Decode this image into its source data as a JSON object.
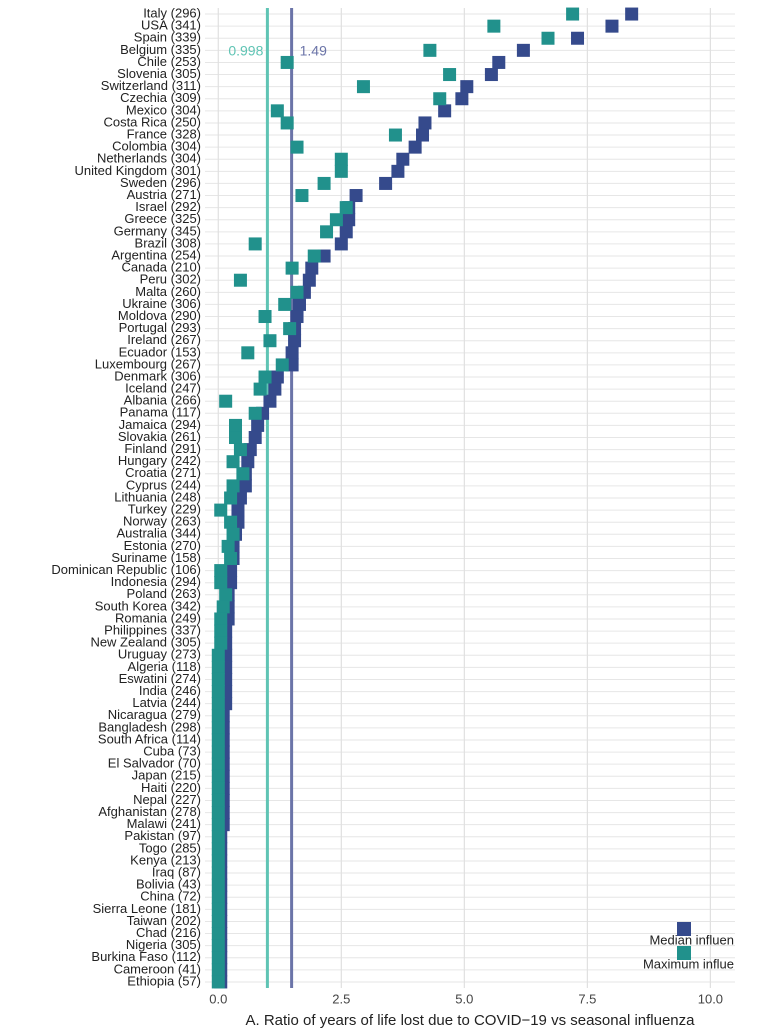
{
  "chart_data": {
    "type": "dot",
    "x_label": "A. Ratio of years of life lost due to COVID−19 vs seasonal influenza",
    "categories": [
      "Italy (296)",
      "USA (341)",
      "Spain (339)",
      "Belgium (335)",
      "Chile (253)",
      "Slovenia (305)",
      "Switzerland (311)",
      "Czechia (309)",
      "Mexico (304)",
      "Costa Rica (250)",
      "France (328)",
      "Colombia (304)",
      "Netherlands (304)",
      "United Kingdom (301)",
      "Sweden (296)",
      "Austria (271)",
      "Israel (292)",
      "Greece (325)",
      "Germany (345)",
      "Brazil (308)",
      "Argentina (254)",
      "Canada (210)",
      "Peru (302)",
      "Malta (260)",
      "Ukraine (306)",
      "Moldova (290)",
      "Portugal (293)",
      "Ireland (267)",
      "Ecuador (153)",
      "Luxembourg (267)",
      "Denmark (306)",
      "Iceland (247)",
      "Albania (266)",
      "Panama (117)",
      "Jamaica (294)",
      "Slovakia (261)",
      "Finland (291)",
      "Hungary (242)",
      "Croatia (271)",
      "Cyprus (244)",
      "Lithuania (248)",
      "Turkey (229)",
      "Norway (263)",
      "Australia (344)",
      "Estonia (270)",
      "Suriname (158)",
      "Dominican Republic (106)",
      "Indonesia (294)",
      "Poland (263)",
      "South Korea (342)",
      "Romania (249)",
      "Philippines (337)",
      "New Zealand (305)",
      "Uruguay (273)",
      "Algeria (118)",
      "Eswatini (274)",
      "India (246)",
      "Latvia (244)",
      "Nicaragua (279)",
      "Bangladesh (298)",
      "South Africa (114)",
      "Cuba (73)",
      "El Salvador (70)",
      "Japan (215)",
      "Haiti (220)",
      "Nepal (227)",
      "Afghanistan (278)",
      "Malawi (241)",
      "Pakistan (97)",
      "Togo (285)",
      "Kenya (213)",
      "Iraq (87)",
      "Bolivia (43)",
      "China (72)",
      "Sierra Leone (181)",
      "Taiwan (202)",
      "Chad (216)",
      "Nigeria (305)",
      "Burkina Faso (112)",
      "Cameroon (41)",
      "Ethiopia (57)"
    ],
    "series": [
      {
        "name": "Median influen",
        "color": "#354a8c",
        "values": [
          8.4,
          8.0,
          7.3,
          6.2,
          5.7,
          5.55,
          5.05,
          4.95,
          4.6,
          4.2,
          4.15,
          4.0,
          3.75,
          3.65,
          3.4,
          2.8,
          2.65,
          2.65,
          2.6,
          2.5,
          2.15,
          1.9,
          1.85,
          1.75,
          1.65,
          1.6,
          1.55,
          1.55,
          1.5,
          1.5,
          1.2,
          1.15,
          1.05,
          0.9,
          0.8,
          0.75,
          0.65,
          0.6,
          0.55,
          0.55,
          0.45,
          0.4,
          0.4,
          0.35,
          0.3,
          0.3,
          0.25,
          0.25,
          0.2,
          0.2,
          0.2,
          0.15,
          0.15,
          0.15,
          0.15,
          0.15,
          0.15,
          0.15,
          0.1,
          0.1,
          0.1,
          0.1,
          0.1,
          0.1,
          0.1,
          0.1,
          0.1,
          0.1,
          0.05,
          0.05,
          0.05,
          0.05,
          0.05,
          0.05,
          0.05,
          0.05,
          0.05,
          0.05,
          0.05,
          0.05,
          0.05
        ]
      },
      {
        "name": "Maximum influe",
        "color": "#21918c",
        "values": [
          7.2,
          5.6,
          6.7,
          4.3,
          1.4,
          4.7,
          2.95,
          4.5,
          1.2,
          1.4,
          3.6,
          1.6,
          2.5,
          2.5,
          2.15,
          1.7,
          2.6,
          2.4,
          2.2,
          0.75,
          1.95,
          1.5,
          0.45,
          1.6,
          1.35,
          0.95,
          1.45,
          1.05,
          0.6,
          1.3,
          0.95,
          0.85,
          0.15,
          0.75,
          0.35,
          0.35,
          0.45,
          0.3,
          0.5,
          0.3,
          0.25,
          0.05,
          0.25,
          0.3,
          0.2,
          0.25,
          0.05,
          0.05,
          0.15,
          0.1,
          0.05,
          0.05,
          0.05,
          0,
          0,
          0,
          0,
          0,
          0,
          0,
          0,
          0,
          0,
          0,
          0,
          0,
          0,
          0,
          0,
          0,
          0,
          0,
          0,
          0,
          0,
          0,
          0,
          0,
          0,
          0,
          0
        ]
      }
    ],
    "vlines": [
      {
        "value": 0.998,
        "color": "#5fc4b4"
      },
      {
        "value": 1.49,
        "color": "#6b74a8"
      }
    ],
    "xlim": [
      -0.27,
      10.5
    ],
    "xticks": [
      {
        "value": 0,
        "label": "0.0"
      },
      {
        "value": 2.5,
        "label": "2.5"
      },
      {
        "value": 5,
        "label": "5.0"
      },
      {
        "value": 7.5,
        "label": "7.5"
      },
      {
        "value": 10,
        "label": "10.0"
      }
    ],
    "grid": true,
    "legend": "bottom-right"
  }
}
